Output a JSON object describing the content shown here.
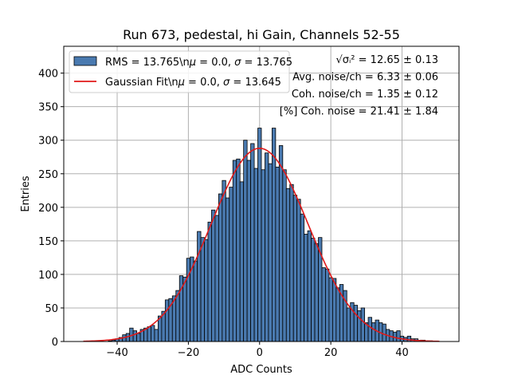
{
  "chart_data": {
    "type": "bar",
    "title": "Run 673, pedestal, hi Gain, Channels 52-55",
    "xlabel": "ADC Counts",
    "ylabel": "Entries",
    "xlim": [
      -55,
      56
    ],
    "ylim": [
      0,
      440
    ],
    "xticks": [
      -40,
      -20,
      0,
      20,
      40
    ],
    "yticks": [
      0,
      50,
      100,
      150,
      200,
      250,
      300,
      350,
      400
    ],
    "grid": true,
    "legend_position": "top-left",
    "bin_width": 1,
    "bins_x": [
      -49,
      -48,
      -47,
      -46,
      -45,
      -44,
      -43,
      -42,
      -41,
      -40,
      -39,
      -38,
      -37,
      -36,
      -35,
      -34,
      -33,
      -32,
      -31,
      -30,
      -29,
      -28,
      -27,
      -26,
      -25,
      -24,
      -23,
      -22,
      -21,
      -20,
      -19,
      -18,
      -17,
      -16,
      -15,
      -14,
      -13,
      -12,
      -11,
      -10,
      -9,
      -8,
      -7,
      -6,
      -5,
      -4,
      -3,
      -2,
      -1,
      0,
      1,
      2,
      3,
      4,
      5,
      6,
      7,
      8,
      9,
      10,
      11,
      12,
      13,
      14,
      15,
      16,
      17,
      18,
      19,
      20,
      21,
      22,
      23,
      24,
      25,
      26,
      27,
      28,
      29,
      30,
      31,
      32,
      33,
      34,
      35,
      36,
      37,
      38,
      39,
      40,
      41,
      42,
      43,
      44,
      45,
      46,
      47,
      48,
      49,
      50
    ],
    "bins_counts": [
      0,
      0,
      0,
      0,
      0,
      0,
      0,
      1,
      2,
      4,
      6,
      10,
      12,
      20,
      16,
      12,
      18,
      20,
      22,
      24,
      18,
      38,
      45,
      62,
      64,
      68,
      76,
      98,
      96,
      124,
      126,
      120,
      164,
      155,
      152,
      178,
      196,
      188,
      220,
      240,
      214,
      230,
      270,
      272,
      238,
      300,
      270,
      295,
      258,
      318,
      256,
      281,
      265,
      318,
      260,
      292,
      256,
      228,
      234,
      218,
      212,
      190,
      160,
      165,
      154,
      146,
      155,
      110,
      108,
      95,
      94,
      80,
      85,
      76,
      50,
      58,
      54,
      46,
      50,
      28,
      36,
      28,
      32,
      28,
      26,
      18,
      16,
      14,
      16,
      8,
      6,
      8,
      4,
      4,
      2,
      2,
      1,
      1,
      0,
      0
    ],
    "series": [
      {
        "name": "RMS = 13.765\\n$\\mu$ = 0.0, $\\sigma$ = 13.765",
        "kind": "histogram",
        "color": "#4a7ab0",
        "edge_color": "#000000"
      },
      {
        "name": "Gaussian Fit\\n$\\mu$ = 0.0, $\\sigma$ = 13.645",
        "kind": "line",
        "color": "#e01a1a",
        "amplitude": 288,
        "mu": 0.0,
        "sigma": 13.645,
        "x_range": [
          -49.5,
          50.5
        ]
      }
    ],
    "legend": [
      {
        "label_parts": [
          "RMS = 13.765\\n",
          "μ",
          " = 0.0, ",
          "σ",
          " = 13.765"
        ],
        "swatch": "bar"
      },
      {
        "label_parts": [
          "Gaussian Fit\\n",
          "μ",
          " = 0.0, ",
          "σ",
          " = 13.645"
        ],
        "swatch": "line"
      }
    ],
    "annotations": [
      {
        "text": "√σᵢ² = 12.65 ± 0.13"
      },
      {
        "text": "Avg. noise/ch = 6.33 ± 0.06"
      },
      {
        "text": "Coh. noise/ch = 1.35 ± 0.12"
      },
      {
        "text": "[%] Coh. noise = 21.41 ± 1.84"
      }
    ]
  }
}
